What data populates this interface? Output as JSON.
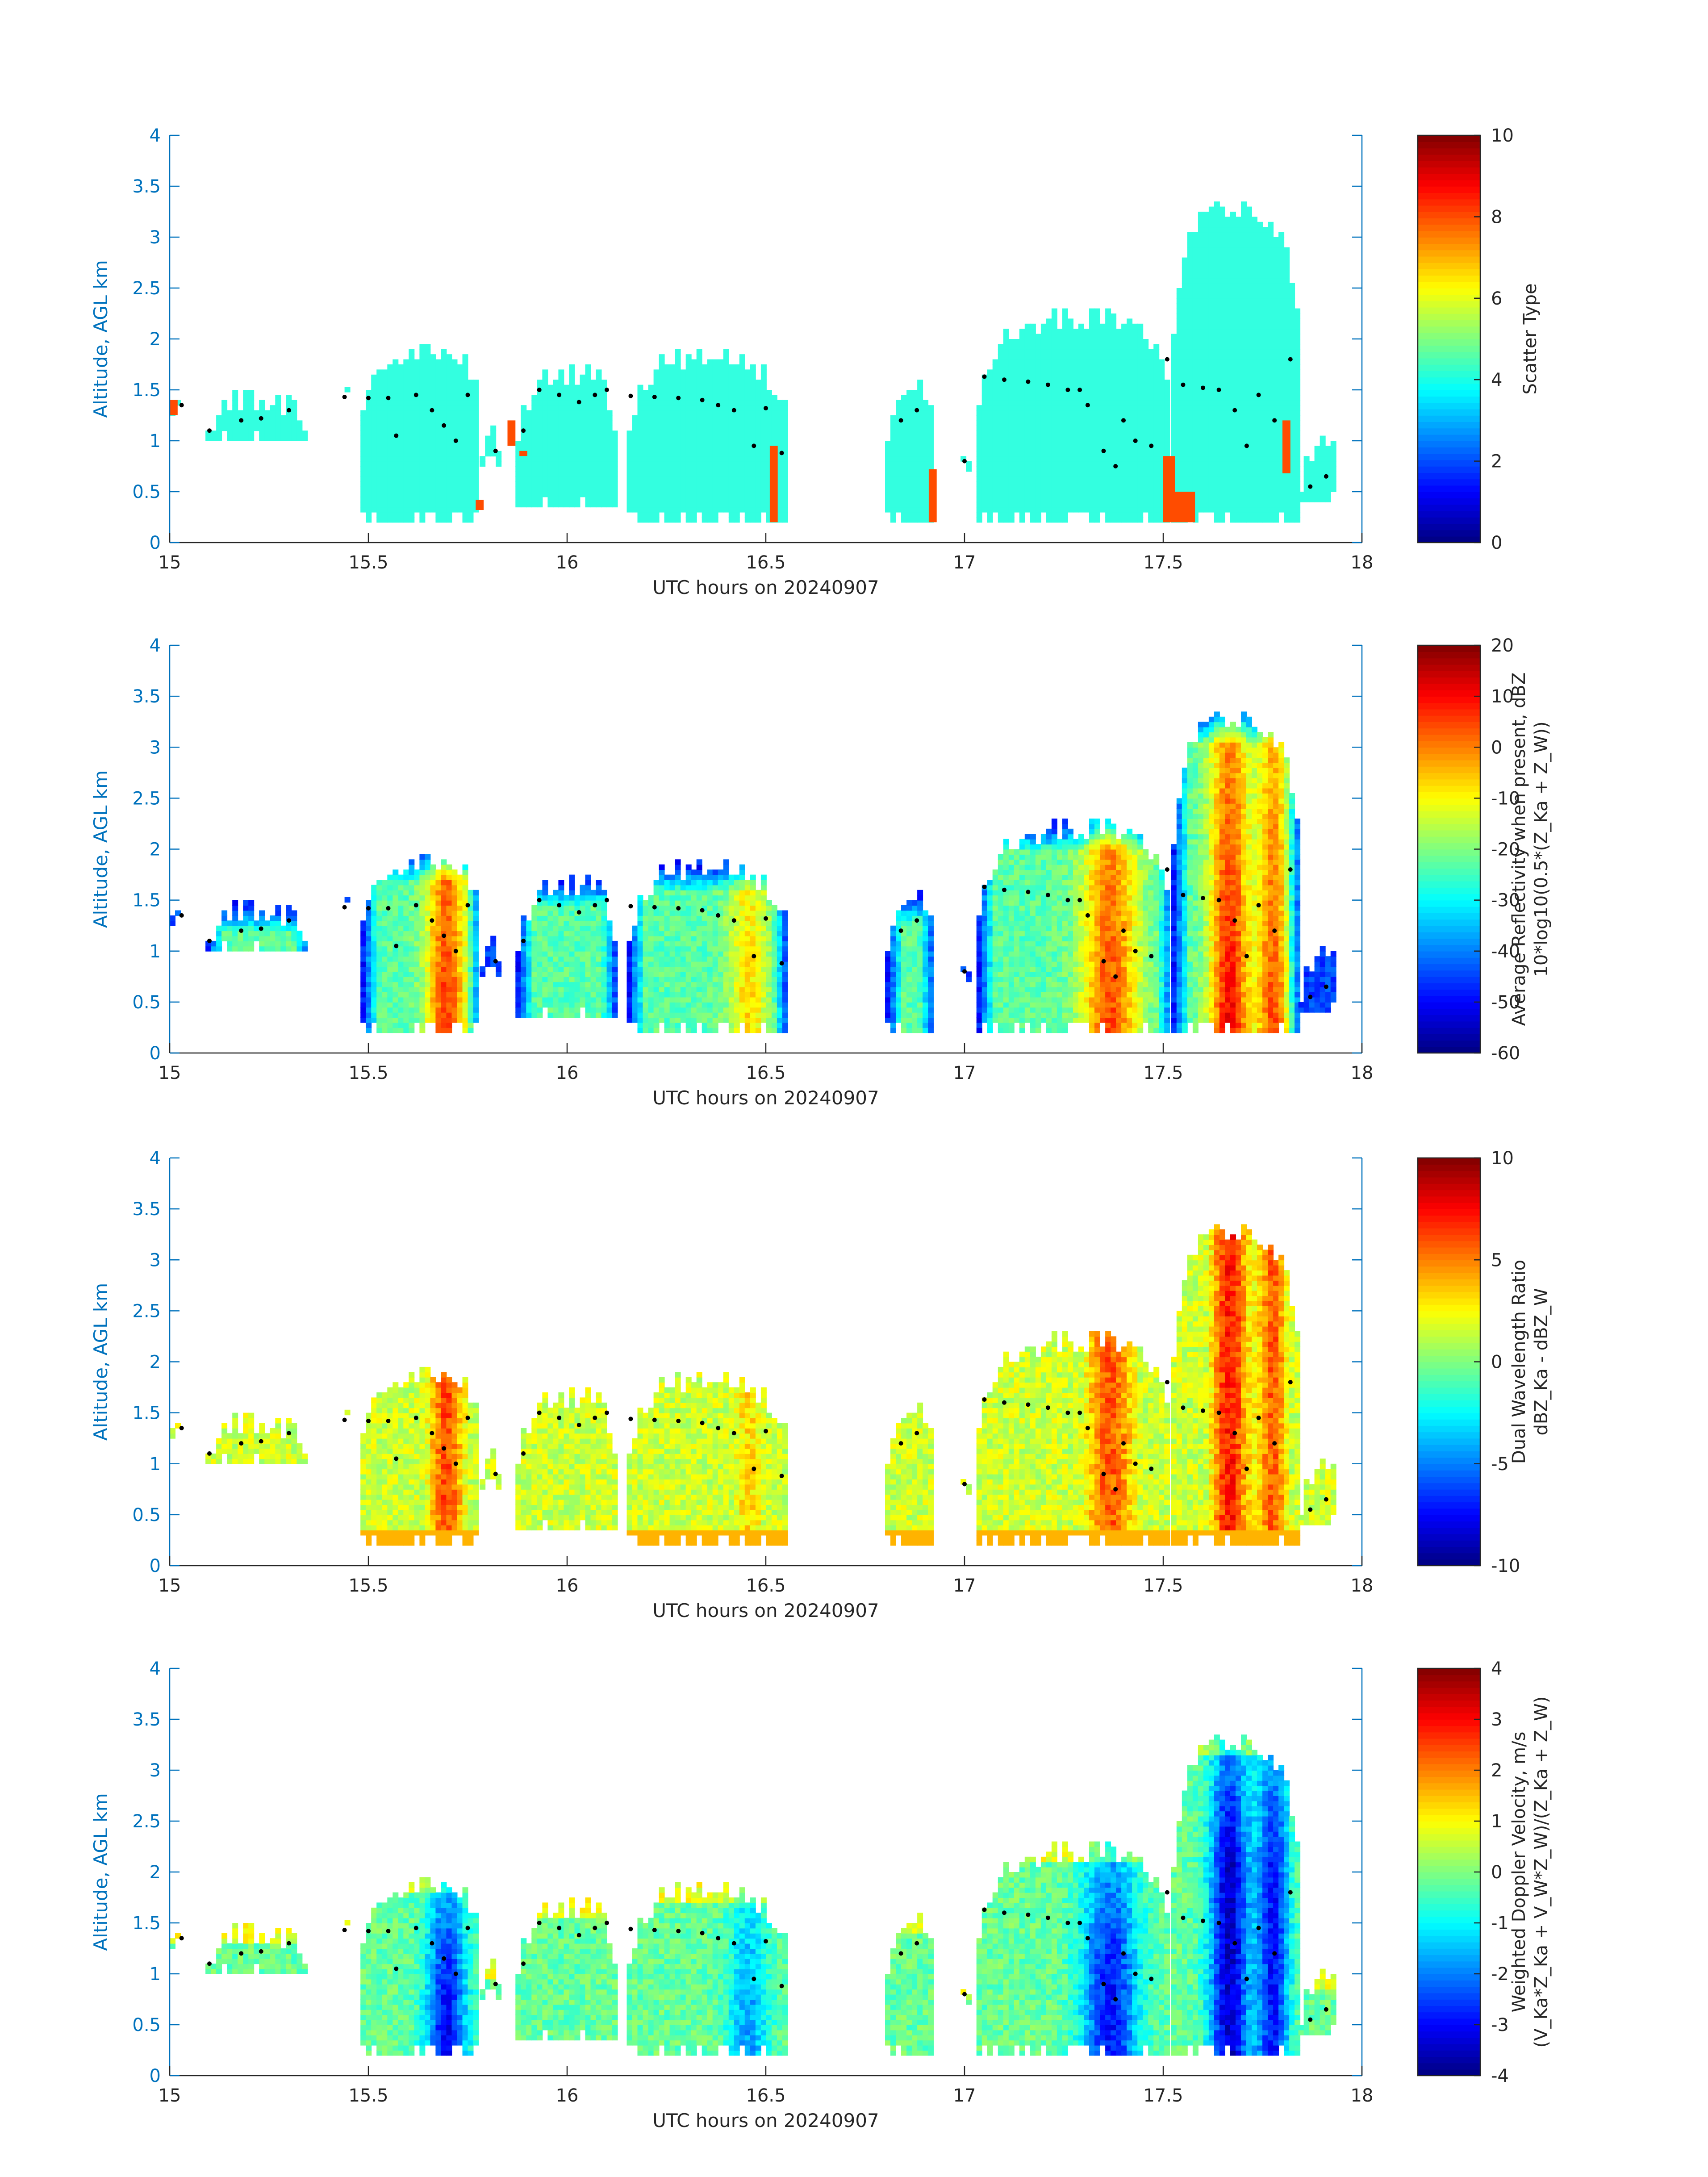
{
  "chart_data": [
    {
      "type": "heatmap",
      "title": "",
      "xlabel": "UTC hours on 20240907",
      "ylabel": "Altitude, AGL km",
      "xlim": [
        15,
        18
      ],
      "ylim": [
        0,
        4
      ],
      "xticks": [
        "15",
        "15.5",
        "16",
        "16.5",
        "17",
        "17.5",
        "18"
      ],
      "yticks": [
        "0",
        "0.5",
        "1",
        "1.5",
        "2",
        "2.5",
        "3",
        "3.5",
        "4"
      ],
      "colorbar": {
        "label": [
          "Scatter Type"
        ],
        "range": [
          0,
          10
        ],
        "ticks": [
          "0",
          "2",
          "4",
          "6",
          "8",
          "10"
        ]
      },
      "field": "scatter",
      "dominant_value": 3.8,
      "dominant_color": "#33ffe0"
    },
    {
      "type": "heatmap",
      "title": "",
      "xlabel": "UTC hours on 20240907",
      "ylabel": "Altitude, AGL km",
      "xlim": [
        15,
        18
      ],
      "ylim": [
        0,
        4
      ],
      "xticks": [
        "15",
        "15.5",
        "16",
        "16.5",
        "17",
        "17.5",
        "18"
      ],
      "yticks": [
        "0",
        "0.5",
        "1",
        "1.5",
        "2",
        "2.5",
        "3",
        "3.5",
        "4"
      ],
      "colorbar": {
        "label": [
          "Average Reflectivity when present, dBZ",
          "10*log10(0.5*(Z_Ka + Z_W))"
        ],
        "range": [
          -60,
          20
        ],
        "ticks": [
          "-60",
          "-50",
          "-40",
          "-30",
          "-20",
          "-10",
          "0",
          "10",
          "20"
        ]
      },
      "field": "reflectivity"
    },
    {
      "type": "heatmap",
      "title": "",
      "xlabel": "UTC hours on 20240907",
      "ylabel": "Altitude, AGL km",
      "xlim": [
        15,
        18
      ],
      "ylim": [
        0,
        4
      ],
      "xticks": [
        "15",
        "15.5",
        "16",
        "16.5",
        "17",
        "17.5",
        "18"
      ],
      "yticks": [
        "0",
        "0.5",
        "1",
        "1.5",
        "2",
        "2.5",
        "3",
        "3.5",
        "4"
      ],
      "colorbar": {
        "label": [
          "Dual Wavelength Ratio",
          "dBZ_Ka - dBZ_W"
        ],
        "range": [
          -10,
          10
        ],
        "ticks": [
          "-10",
          "-5",
          "0",
          "5",
          "10"
        ]
      },
      "field": "dwr"
    },
    {
      "type": "heatmap",
      "title": "",
      "xlabel": "UTC hours on 20240907",
      "ylabel": "Altitude, AGL km",
      "xlim": [
        15,
        18
      ],
      "ylim": [
        0,
        4
      ],
      "xticks": [
        "15",
        "15.5",
        "16",
        "16.5",
        "17",
        "17.5",
        "18"
      ],
      "yticks": [
        "0",
        "0.5",
        "1",
        "1.5",
        "2",
        "2.5",
        "3",
        "3.5",
        "4"
      ],
      "colorbar": {
        "label": [
          "Weighted Doppler Velocity, m/s",
          "(V_Ka*Z_Ka + V_W*Z_W)/(Z_Ka + Z_W)"
        ],
        "range": [
          -4,
          4
        ],
        "ticks": [
          "-4",
          "-3",
          "-2",
          "-1",
          "0",
          "1",
          "2",
          "3",
          "4"
        ]
      },
      "field": "velocity"
    }
  ],
  "cloud_regions": [
    {
      "t0": 15.0,
      "t1": 15.03,
      "bottom": 1.25,
      "top": 1.4
    },
    {
      "t0": 15.09,
      "t1": 15.35,
      "bottom": 1.0,
      "top": 1.4
    },
    {
      "t0": 15.44,
      "t1": 15.46,
      "bottom": 1.38,
      "top": 1.55
    },
    {
      "t0": 15.48,
      "t1": 15.78,
      "bottom": 0.2,
      "top": 1.9
    },
    {
      "t0": 15.78,
      "t1": 15.83,
      "bottom": 0.75,
      "top": 1.05
    },
    {
      "t0": 15.87,
      "t1": 16.12,
      "bottom": 0.35,
      "top": 1.65
    },
    {
      "t0": 16.15,
      "t1": 16.55,
      "bottom": 0.2,
      "top": 1.8
    },
    {
      "t0": 16.8,
      "t1": 16.92,
      "bottom": 0.2,
      "top": 1.5
    },
    {
      "t0": 16.99,
      "t1": 17.02,
      "bottom": 0.7,
      "top": 0.85
    },
    {
      "t0": 17.03,
      "t1": 17.52,
      "bottom": 0.2,
      "top": 2.2
    },
    {
      "t0": 17.52,
      "t1": 17.84,
      "bottom": 0.2,
      "top": 3.25
    },
    {
      "t0": 17.84,
      "t1": 17.94,
      "bottom": 0.4,
      "top": 0.95
    }
  ],
  "scatter_anomalies": [
    {
      "t0": 15.0,
      "t1": 15.02,
      "bottom": 1.25,
      "top": 1.4,
      "value": 8
    },
    {
      "t0": 15.77,
      "t1": 15.79,
      "bottom": 0.32,
      "top": 0.42,
      "value": 8
    },
    {
      "t0": 15.85,
      "t1": 15.87,
      "bottom": 0.95,
      "top": 1.2,
      "value": 8
    },
    {
      "t0": 15.88,
      "t1": 15.9,
      "bottom": 0.85,
      "top": 0.9,
      "value": 8
    },
    {
      "t0": 16.51,
      "t1": 16.53,
      "bottom": 0.2,
      "top": 0.95,
      "value": 8
    },
    {
      "t0": 16.91,
      "t1": 16.93,
      "bottom": 0.2,
      "top": 0.72,
      "value": 8
    },
    {
      "t0": 17.5,
      "t1": 17.53,
      "bottom": 0.2,
      "top": 0.85,
      "value": 8
    },
    {
      "t0": 17.53,
      "t1": 17.58,
      "bottom": 0.2,
      "top": 0.5,
      "value": 8
    },
    {
      "t0": 17.8,
      "t1": 17.82,
      "bottom": 0.68,
      "top": 1.2,
      "value": 8
    }
  ],
  "cloud_base_dots": [
    {
      "t": 15.03,
      "alt": 1.35
    },
    {
      "t": 15.1,
      "alt": 1.1
    },
    {
      "t": 15.18,
      "alt": 1.2
    },
    {
      "t": 15.23,
      "alt": 1.22
    },
    {
      "t": 15.3,
      "alt": 1.3
    },
    {
      "t": 15.44,
      "alt": 1.43
    },
    {
      "t": 15.5,
      "alt": 1.42
    },
    {
      "t": 15.55,
      "alt": 1.42
    },
    {
      "t": 15.57,
      "alt": 1.05
    },
    {
      "t": 15.62,
      "alt": 1.45
    },
    {
      "t": 15.66,
      "alt": 1.3
    },
    {
      "t": 15.69,
      "alt": 1.15
    },
    {
      "t": 15.72,
      "alt": 1.0
    },
    {
      "t": 15.75,
      "alt": 1.45
    },
    {
      "t": 15.82,
      "alt": 0.9
    },
    {
      "t": 15.89,
      "alt": 1.1
    },
    {
      "t": 15.93,
      "alt": 1.5
    },
    {
      "t": 15.98,
      "alt": 1.45
    },
    {
      "t": 16.03,
      "alt": 1.38
    },
    {
      "t": 16.07,
      "alt": 1.45
    },
    {
      "t": 16.1,
      "alt": 1.5
    },
    {
      "t": 16.16,
      "alt": 1.44
    },
    {
      "t": 16.22,
      "alt": 1.43
    },
    {
      "t": 16.28,
      "alt": 1.42
    },
    {
      "t": 16.34,
      "alt": 1.4
    },
    {
      "t": 16.38,
      "alt": 1.35
    },
    {
      "t": 16.42,
      "alt": 1.3
    },
    {
      "t": 16.47,
      "alt": 0.95
    },
    {
      "t": 16.5,
      "alt": 1.32
    },
    {
      "t": 16.54,
      "alt": 0.88
    },
    {
      "t": 16.84,
      "alt": 1.2
    },
    {
      "t": 16.88,
      "alt": 1.3
    },
    {
      "t": 17.0,
      "alt": 0.8
    },
    {
      "t": 17.05,
      "alt": 1.63
    },
    {
      "t": 17.1,
      "alt": 1.6
    },
    {
      "t": 17.16,
      "alt": 1.58
    },
    {
      "t": 17.21,
      "alt": 1.55
    },
    {
      "t": 17.26,
      "alt": 1.5
    },
    {
      "t": 17.29,
      "alt": 1.5
    },
    {
      "t": 17.31,
      "alt": 1.35
    },
    {
      "t": 17.35,
      "alt": 0.9
    },
    {
      "t": 17.38,
      "alt": 0.75
    },
    {
      "t": 17.4,
      "alt": 1.2
    },
    {
      "t": 17.43,
      "alt": 1.0
    },
    {
      "t": 17.47,
      "alt": 0.95
    },
    {
      "t": 17.51,
      "alt": 1.8
    },
    {
      "t": 17.55,
      "alt": 1.55
    },
    {
      "t": 17.6,
      "alt": 1.52
    },
    {
      "t": 17.64,
      "alt": 1.5
    },
    {
      "t": 17.68,
      "alt": 1.3
    },
    {
      "t": 17.71,
      "alt": 0.95
    },
    {
      "t": 17.74,
      "alt": 1.45
    },
    {
      "t": 17.78,
      "alt": 1.2
    },
    {
      "t": 17.82,
      "alt": 1.8
    },
    {
      "t": 17.87,
      "alt": 0.55
    },
    {
      "t": 17.91,
      "alt": 0.65
    }
  ]
}
